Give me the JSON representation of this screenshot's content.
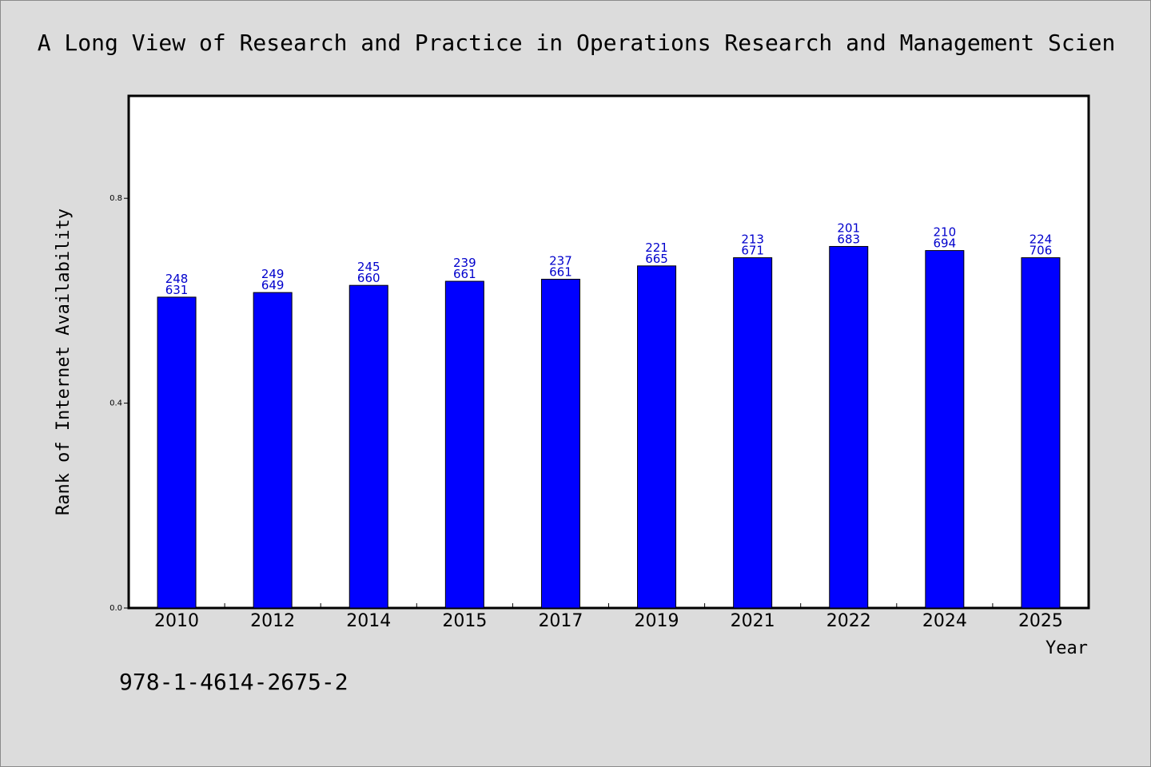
{
  "chart_data": {
    "type": "bar",
    "title": "A Long View of Research and Practice in Operations Research and Management Scien",
    "xlabel": "Year",
    "ylabel": "Rank of Internet Availability",
    "categories": [
      "2010",
      "2012",
      "2014",
      "2015",
      "2017",
      "2019",
      "2021",
      "2022",
      "2024",
      "2025"
    ],
    "values": [
      0.607,
      0.616,
      0.63,
      0.638,
      0.642,
      0.668,
      0.684,
      0.706,
      0.698,
      0.684
    ],
    "labels_top": [
      "248",
      "249",
      "245",
      "239",
      "237",
      "221",
      "213",
      "201",
      "210",
      "224"
    ],
    "labels_bottom": [
      "631",
      "649",
      "660",
      "661",
      "661",
      "665",
      "671",
      "683",
      "694",
      "706"
    ],
    "ylim": [
      0,
      1.0
    ],
    "yticks": [
      0.0,
      0.4,
      0.8
    ],
    "ytick_labels": [
      "0.0",
      "0.4",
      "0.8"
    ],
    "grid": false,
    "bar_color": "#0000ff",
    "label_color": "#0000cc"
  },
  "footer": {
    "isbn": "978-1-4614-2675-2"
  }
}
